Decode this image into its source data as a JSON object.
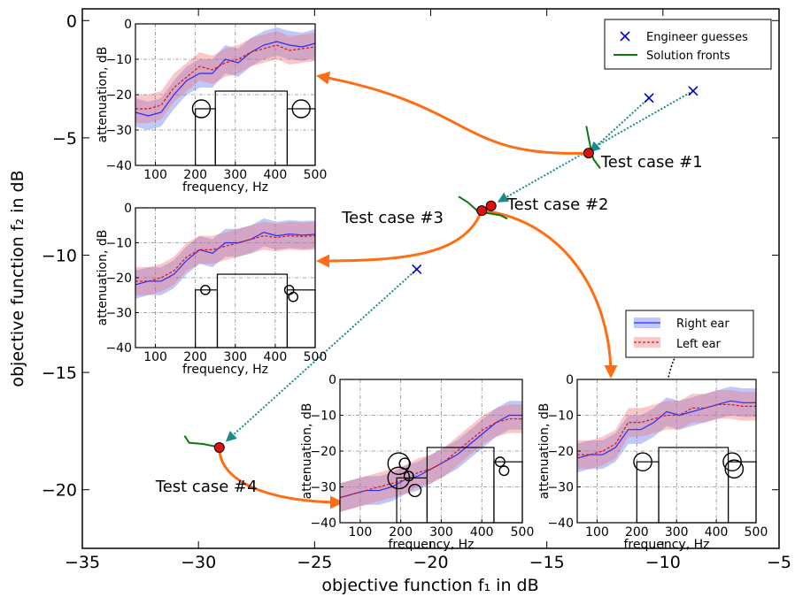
{
  "chart_data": {
    "type": "scatter",
    "xlabel": "objective function f₁ in dB",
    "ylabel": "objective function f₂ in dB",
    "xlim": [
      -35,
      -5
    ],
    "ylim": [
      -22.5,
      0.5
    ],
    "x_ticks": [
      -35,
      -30,
      -25,
      -20,
      -15,
      -10,
      -5
    ],
    "y_ticks": [
      0,
      -5,
      -10,
      -15,
      -20
    ],
    "legend_top": {
      "placement": "top-right",
      "entries": [
        "Engineer guesses",
        "Solution fronts"
      ]
    },
    "legend_ears": {
      "entries": [
        "Right ear",
        "Left ear"
      ]
    },
    "series": [
      {
        "name": "Engineer guesses",
        "marker": "x",
        "color": "#0000cc",
        "points": [
          [
            -10.6,
            -3.3
          ],
          [
            -8.7,
            -3.0
          ],
          [
            -20.6,
            -10.6
          ]
        ]
      }
    ],
    "solution_fronts": [
      [
        [
          -13.3,
          -4.5
        ],
        [
          -13.2,
          -5.0
        ],
        [
          -13.1,
          -5.5
        ],
        [
          -13.0,
          -5.9
        ],
        [
          -12.7,
          -6.3
        ]
      ],
      [
        [
          -18.8,
          -7.5
        ],
        [
          -18.4,
          -7.75
        ],
        [
          -18.0,
          -8.1
        ],
        [
          -17.6,
          -8.2
        ],
        [
          -17.0,
          -8.3
        ],
        [
          -16.7,
          -8.45
        ]
      ],
      [
        [
          -30.6,
          -17.7
        ],
        [
          -30.4,
          -18.0
        ],
        [
          -29.8,
          -18.05
        ],
        [
          -29.3,
          -18.15
        ]
      ]
    ],
    "test_cases": [
      {
        "label": "Test case #1",
        "x": -13.2,
        "y": -5.65
      },
      {
        "label": "Test case #2",
        "x": -17.4,
        "y": -7.9
      },
      {
        "label": "Test case #3",
        "x": -17.8,
        "y": -8.1
      },
      {
        "label": "Test case #4",
        "x": -29.1,
        "y": -18.2
      }
    ],
    "guess_links": [
      {
        "from": [
          -10.6,
          -3.3
        ],
        "to": [
          -13.2,
          -5.65
        ]
      },
      {
        "from": [
          -8.7,
          -3.0
        ],
        "to": [
          -17.4,
          -7.9
        ]
      },
      {
        "from": [
          -20.6,
          -10.6
        ],
        "to": [
          -29.1,
          -18.2
        ]
      }
    ],
    "insets": [
      {
        "case": "Test case #1",
        "xlabel": "frequency, Hz",
        "ylabel": "attenuation, dB",
        "xlim": [
          50,
          500
        ],
        "ylim": [
          -40,
          0
        ],
        "x_ticks": [
          100,
          200,
          300,
          400,
          500
        ],
        "y_ticks": [
          0,
          -10,
          -20,
          -30,
          -40
        ],
        "right_ear": [
          -25,
          -26,
          -25,
          -20,
          -16,
          -14,
          -14,
          -10,
          -11,
          -8,
          -6,
          -5,
          -6,
          -6.5,
          -5.5
        ],
        "left_ear": [
          -24,
          -24,
          -23,
          -18,
          -15,
          -12,
          -13,
          -11,
          -10,
          -8,
          -7,
          -6,
          -7.5,
          -7,
          -6.5
        ],
        "band_halfwidth": 4,
        "bars": [
          [
            200,
            250,
            -24
          ],
          [
            250,
            430,
            -19
          ],
          [
            430,
            500,
            -24
          ]
        ],
        "circles": [
          [
            215,
            -24,
            2.5
          ],
          [
            465,
            -24,
            2.5
          ]
        ]
      },
      {
        "case": "Test case #3",
        "xlabel": "frequency, Hz",
        "ylabel": "attenuation, dB",
        "xlim": [
          50,
          500
        ],
        "ylim": [
          -40,
          0
        ],
        "x_ticks": [
          100,
          200,
          300,
          400,
          500
        ],
        "y_ticks": [
          0,
          -10,
          -20,
          -30,
          -40
        ],
        "right_ear": [
          -22,
          -21,
          -21,
          -19,
          -15,
          -12,
          -13,
          -10,
          -10,
          -9,
          -7,
          -8,
          -7.5,
          -7.8,
          -7.6
        ],
        "left_ear": [
          -21,
          -21,
          -20,
          -18,
          -14,
          -12,
          -12,
          -11,
          -10,
          -9,
          -8,
          -8.5,
          -8,
          -8.2,
          -8
        ],
        "band_halfwidth": 4,
        "bars": [
          [
            200,
            255,
            -23.5
          ],
          [
            255,
            430,
            -19
          ],
          [
            430,
            500,
            -23.5
          ]
        ],
        "circles": [
          [
            225,
            -23.5,
            1.3
          ],
          [
            435,
            -23.5,
            1.3
          ],
          [
            445,
            -25.5,
            1.3
          ]
        ]
      },
      {
        "case": "Test case #4",
        "xlabel": "frequency, Hz",
        "ylabel": "attenuation, dB",
        "xlim": [
          50,
          500
        ],
        "ylim": [
          -40,
          0
        ],
        "x_ticks": [
          100,
          200,
          300,
          400,
          500
        ],
        "y_ticks": [
          0,
          -10,
          -20,
          -30,
          -40
        ],
        "right_ear": [
          -33,
          -32,
          -31,
          -31,
          -30,
          -28,
          -27,
          -25,
          -23,
          -21,
          -18,
          -15,
          -12,
          -10,
          -10
        ],
        "left_ear": [
          -33,
          -32,
          -31,
          -30,
          -29,
          -28,
          -26,
          -25,
          -23,
          -20,
          -17,
          -14,
          -12,
          -11,
          -11
        ],
        "band_halfwidth": 4,
        "bars": [
          [
            190,
            265,
            -27.5
          ],
          [
            265,
            430,
            -19
          ],
          [
            430,
            500,
            -23
          ]
        ],
        "circles": [
          [
            195,
            -23.5,
            3
          ],
          [
            195,
            -27.5,
            3
          ],
          [
            210,
            -23.5,
            1.5
          ],
          [
            220,
            -27,
            1.3
          ],
          [
            235,
            -31,
            1.7
          ],
          [
            445,
            -23,
            1.3
          ],
          [
            455,
            -25.5,
            1.3
          ]
        ]
      },
      {
        "case": "Test case #2",
        "xlabel": "frequency, Hz",
        "ylabel": "attenuation, dB",
        "xlim": [
          50,
          500
        ],
        "ylim": [
          -40,
          0
        ],
        "x_ticks": [
          100,
          200,
          300,
          400,
          500
        ],
        "y_ticks": [
          0,
          -10,
          -20,
          -30,
          -40
        ],
        "right_ear": [
          -22,
          -21,
          -21,
          -19,
          -14,
          -14,
          -12,
          -9,
          -10,
          -9,
          -8,
          -7,
          -6,
          -6.5,
          -6.5
        ],
        "left_ear": [
          -21,
          -21,
          -20,
          -18,
          -12,
          -12,
          -11,
          -10,
          -10,
          -8,
          -8,
          -7,
          -7,
          -7.5,
          -7.5
        ],
        "band_halfwidth": 4,
        "bars": [
          [
            200,
            255,
            -23
          ],
          [
            255,
            430,
            -19
          ],
          [
            430,
            500,
            -23
          ]
        ],
        "circles": [
          [
            215,
            -23,
            2.5
          ],
          [
            440,
            -23,
            2.5
          ],
          [
            445,
            -25,
            2.5
          ]
        ]
      }
    ]
  }
}
